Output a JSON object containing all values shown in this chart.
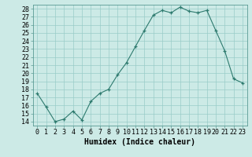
{
  "x": [
    0,
    1,
    2,
    3,
    4,
    5,
    6,
    7,
    8,
    9,
    10,
    11,
    12,
    13,
    14,
    15,
    16,
    17,
    18,
    19,
    20,
    21,
    22,
    23
  ],
  "y": [
    17.5,
    15.8,
    14.0,
    14.3,
    15.3,
    14.2,
    16.5,
    17.5,
    18.0,
    19.8,
    21.3,
    23.3,
    25.3,
    27.2,
    27.8,
    27.5,
    28.2,
    27.7,
    27.5,
    27.8,
    25.3,
    22.8,
    19.3,
    18.8
  ],
  "xlabel": "Humidex (Indice chaleur)",
  "ylim": [
    13.5,
    28.5
  ],
  "xlim": [
    -0.5,
    23.5
  ],
  "yticks": [
    14,
    15,
    16,
    17,
    18,
    19,
    20,
    21,
    22,
    23,
    24,
    25,
    26,
    27,
    28
  ],
  "xticks": [
    0,
    1,
    2,
    3,
    4,
    5,
    6,
    7,
    8,
    9,
    10,
    11,
    12,
    13,
    14,
    15,
    16,
    17,
    18,
    19,
    20,
    21,
    22,
    23
  ],
  "line_color": "#2d7a6e",
  "marker_color": "#2d7a6e",
  "bg_color": "#cceae6",
  "grid_color": "#99ccc8",
  "xlabel_fontsize": 7,
  "tick_fontsize": 6
}
